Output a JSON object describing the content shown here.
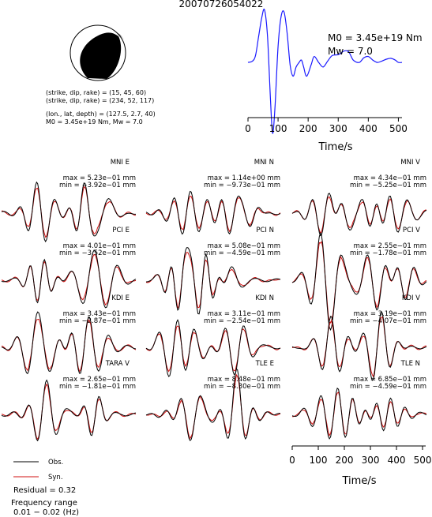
{
  "title": "20070726054022",
  "mechanism": {
    "plane1": "(strike, dip, rake) = (15, 45, 60)",
    "plane2": "(strike, dip, rake) = (234, 52, 117)",
    "location": "(lon., lat, depth) = (127.5, 2.7, 40)",
    "moment_line": "M0 = 3.45e+19 Nm, Mw = 7.0"
  },
  "stf": {
    "m0_text": "M0 = 3.45e+19 Nm",
    "mw_text": "Mw = 7.0",
    "xlabel": "Time/s",
    "xticks": [
      0,
      100,
      200,
      300,
      400,
      500
    ],
    "xlim": [
      0,
      512
    ],
    "points": [
      [
        0,
        0.05
      ],
      [
        15,
        0.08
      ],
      [
        25,
        0.2
      ],
      [
        35,
        0.6
      ],
      [
        45,
        1.0
      ],
      [
        55,
        1.2
      ],
      [
        65,
        0.6
      ],
      [
        75,
        -0.8
      ],
      [
        82,
        -1.5
      ],
      [
        90,
        -0.9
      ],
      [
        100,
        0.4
      ],
      [
        110,
        1.05
      ],
      [
        120,
        1.15
      ],
      [
        130,
        0.7
      ],
      [
        140,
        0.0
      ],
      [
        150,
        -0.25
      ],
      [
        160,
        -0.05
      ],
      [
        170,
        0.05
      ],
      [
        178,
        0.1
      ],
      [
        185,
        -0.05
      ],
      [
        195,
        -0.25
      ],
      [
        210,
        0.0
      ],
      [
        220,
        0.18
      ],
      [
        235,
        0.05
      ],
      [
        250,
        -0.05
      ],
      [
        265,
        0.08
      ],
      [
        280,
        0.2
      ],
      [
        300,
        0.22
      ],
      [
        320,
        0.3
      ],
      [
        335,
        0.28
      ],
      [
        350,
        0.1
      ],
      [
        370,
        0.05
      ],
      [
        385,
        0.15
      ],
      [
        400,
        0.18
      ],
      [
        415,
        0.1
      ],
      [
        430,
        0.05
      ],
      [
        445,
        0.08
      ],
      [
        460,
        0.12
      ],
      [
        475,
        0.14
      ],
      [
        490,
        0.1
      ],
      [
        500,
        0.05
      ],
      [
        512,
        0.05
      ]
    ]
  },
  "panels": [
    {
      "name": "MNI E",
      "max": "max = 5.23e−01 mm",
      "min": "min = −3.92e−01 mm",
      "seed": 1
    },
    {
      "name": "MNI N",
      "max": "max = 1.14e+00 mm",
      "min": "min = −9.73e−01 mm",
      "seed": 2
    },
    {
      "name": "MNI V",
      "max": "max = 4.34e−01 mm",
      "min": "min = −5.25e−01 mm",
      "seed": 3
    },
    {
      "name": "PCI E",
      "max": "max = 4.01e−01 mm",
      "min": "min = −3.52e−01 mm",
      "seed": 4
    },
    {
      "name": "PCI N",
      "max": "max = 5.08e−01 mm",
      "min": "min = −4.59e−01 mm",
      "seed": 5
    },
    {
      "name": "PCI V",
      "max": "max = 2.55e−01 mm",
      "min": "min = −1.78e−01 mm",
      "seed": 6
    },
    {
      "name": "KDI E",
      "max": "max = 3.43e−01 mm",
      "min": "min = −2.87e−01 mm",
      "seed": 7
    },
    {
      "name": "KDI N",
      "max": "max = 3.11e−01 mm",
      "min": "min = −2.54e−01 mm",
      "seed": 8
    },
    {
      "name": "KDI V",
      "max": "max = 3.19e−01 mm",
      "min": "min = −4.07e−01 mm",
      "seed": 9
    },
    {
      "name": "TARA V",
      "max": "max = 2.65e−01 mm",
      "min": "min = −1.81e−01 mm",
      "seed": 10
    },
    {
      "name": "TLE E",
      "max": "max = 8.48e−01 mm",
      "min": "min = −8.30e−01 mm",
      "seed": 11
    },
    {
      "name": "TLE N",
      "max": "max = 6.85e−01 mm",
      "min": "min = −4.59e−01 mm",
      "seed": 12
    }
  ],
  "bottom_axis": {
    "xlabel": "Time/s",
    "xticks": [
      0,
      100,
      200,
      300,
      400,
      500
    ],
    "xlim": [
      0,
      512
    ]
  },
  "legend": {
    "obs_label": "Obs.",
    "syn_label": "Syn.",
    "obs_color": "#000000",
    "syn_color": "#d01010"
  },
  "residual": "Residual = 0.32",
  "frequency_title": "Frequency range",
  "frequency_range": "0.01 − 0.02 (Hz)",
  "chart_data": {
    "type": "line",
    "title": "20070726054022",
    "xlabel": "Time/s",
    "ylabel": "",
    "xlim": [
      0,
      512
    ],
    "series": [
      {
        "name": "Obs.",
        "color": "#000000"
      },
      {
        "name": "Syn.",
        "color": "#d01010"
      }
    ]
  }
}
